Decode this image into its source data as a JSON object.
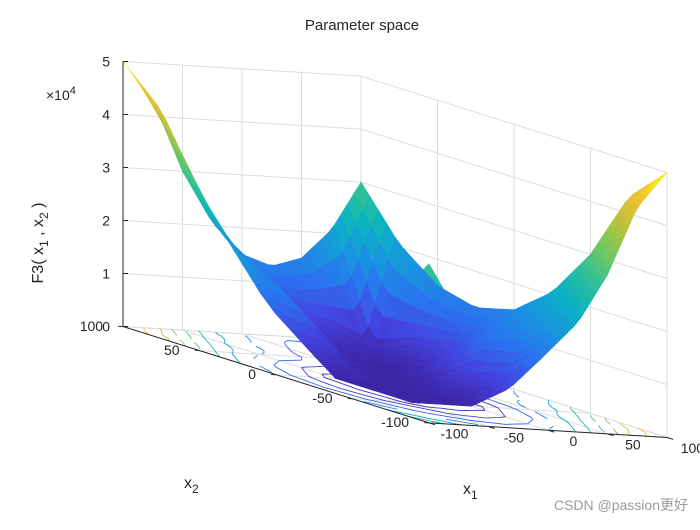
{
  "chart_data": {
    "type": "surface",
    "title": "Parameter space",
    "function_label": "F3",
    "xlabel_main": "x",
    "xlabel_sub": "1",
    "ylabel_main": "x",
    "ylabel_sub": "2",
    "zlabel": {
      "parts": [
        "F3( x",
        "1",
        " , x",
        "2",
        " )"
      ]
    },
    "z_exponent_prefix": "×10",
    "z_exponent": "4",
    "x_ticks": [
      -100,
      -50,
      0,
      50,
      100
    ],
    "y_ticks": [
      -100,
      -50,
      0,
      50,
      100
    ],
    "z_ticks": [
      0,
      1,
      2,
      3,
      4,
      5
    ],
    "xlim": [
      -100,
      100
    ],
    "ylim": [
      -100,
      100
    ],
    "zlim": [
      0,
      50000
    ],
    "surface": {
      "x": [
        -100,
        -75,
        -50,
        -25,
        0,
        25,
        50,
        75,
        100
      ],
      "y": [
        -100,
        -75,
        -50,
        -25,
        0,
        25,
        50,
        75,
        100
      ],
      "z": [
        [
          30000,
          20625,
          15000,
          13125,
          15000,
          20625,
          30000,
          43125,
          50000
        ],
        [
          20625,
          11250,
          5625,
          3750,
          5625,
          11250,
          20625,
          30000,
          43125
        ],
        [
          15000,
          5625,
          0,
          0,
          0,
          5625,
          15000,
          20625,
          30000
        ],
        [
          13125,
          3750,
          0,
          0,
          0,
          3750,
          13125,
          15000,
          20625
        ],
        [
          15000,
          5625,
          0,
          0,
          0,
          0,
          5625,
          11250,
          15000
        ],
        [
          20625,
          11250,
          5625,
          3750,
          0,
          0,
          0,
          5625,
          13125
        ],
        [
          30000,
          20625,
          15000,
          13125,
          5625,
          0,
          0,
          3750,
          15000
        ],
        [
          43125,
          30000,
          20625,
          15000,
          11250,
          5625,
          3750,
          0,
          20625
        ],
        [
          50000,
          43125,
          30000,
          20625,
          15000,
          13125,
          15000,
          20625,
          30000
        ]
      ]
    },
    "contour_levels": [
      2000,
      5000,
      10000,
      15000,
      20000,
      25000,
      30000,
      35000,
      40000,
      45000
    ],
    "colormap": [
      "#3e26a8",
      "#4444e0",
      "#2c70f0",
      "#1a93e0",
      "#0ab2c4",
      "#2dc098",
      "#72c85f",
      "#bcc13b",
      "#f3c02e",
      "#f9fb15"
    ],
    "grid": true,
    "box": true
  },
  "watermark": "CSDN @passion更好"
}
